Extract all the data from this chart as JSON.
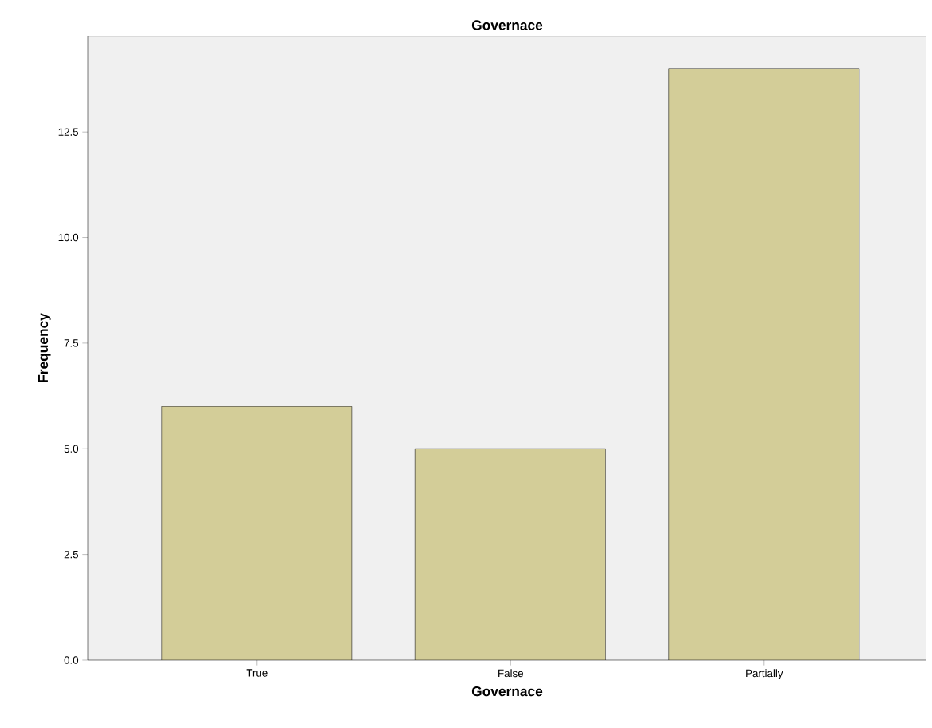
{
  "chart_data": {
    "type": "bar",
    "title": "Governace",
    "xlabel": "Governace",
    "ylabel": "Frequency",
    "categories": [
      "True",
      "False",
      "Partially"
    ],
    "values": [
      6,
      5,
      14
    ],
    "color": "#d3cd98",
    "ylim": [
      0,
      14.77
    ],
    "yticks": [
      {
        "value": 0,
        "label": "0.0"
      },
      {
        "value": 2.5,
        "label": "2.5"
      },
      {
        "value": 5,
        "label": "5.0"
      },
      {
        "value": 7.5,
        "label": "7.5"
      },
      {
        "value": 10,
        "label": "10.0"
      },
      {
        "value": 12.5,
        "label": "12.5"
      }
    ],
    "grid": false
  }
}
